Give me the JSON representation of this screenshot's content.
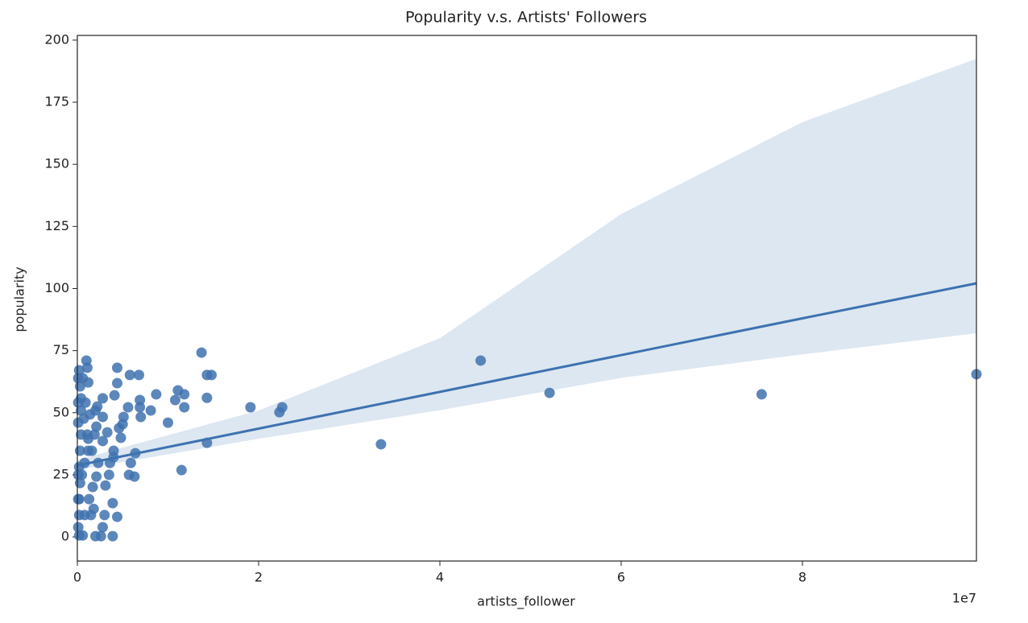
{
  "chart_data": {
    "type": "scatter",
    "title": "Popularity v.s. Artists' Followers",
    "x_label": "artists_follower",
    "y_label": "popularity",
    "x_offset_label": "1e7",
    "color": "#3f72af",
    "x": [
      99200000,
      75500000,
      52100000,
      44500000,
      33500000,
      22600000,
      22300000,
      19100000,
      14300000,
      14300000,
      14300000,
      14800000,
      13700000,
      11800000,
      11500000,
      11800000,
      11100000,
      10800000,
      10000000,
      8700000,
      8100000,
      7000000,
      6900000,
      6800000,
      6900000,
      6300000,
      6400000,
      5800000,
      5700000,
      5900000,
      5600000,
      5100000,
      5000000,
      4800000,
      4600000,
      4400000,
      4400000,
      4400000,
      4100000,
      4000000,
      4000000,
      3900000,
      3900000,
      3600000,
      3500000,
      3300000,
      3100000,
      3000000,
      2800000,
      2800000,
      2800000,
      2800000,
      2600000,
      2300000,
      2100000,
      2000000,
      2000000,
      2100000,
      1700000,
      1800000,
      1500000,
      1200000,
      1100000,
      1000000,
      1200000,
      800000,
      200000,
      300000,
      400000,
      400000,
      300000,
      200000,
      300000,
      200000,
      200000,
      200000,
      100000,
      600000,
      500000,
      700000,
      900000,
      1100000,
      1400000,
      1600000,
      600000,
      400000,
      100000,
      100000,
      100000,
      100000,
      100000,
      800000,
      1200000,
      1300000,
      1900000,
      2200000
    ],
    "y": [
      65.5,
      57.4,
      58,
      71,
      37.3,
      52.2,
      50.2,
      52.2,
      37.9,
      56,
      65.2,
      65.2,
      74.2,
      57.4,
      26.9,
      52.2,
      59,
      55.1,
      46,
      57.4,
      50.9,
      48.3,
      55.1,
      65.2,
      52.2,
      24.3,
      33.7,
      65.2,
      25,
      29.8,
      52.2,
      48.3,
      45.4,
      39.9,
      43.8,
      68.1,
      61.9,
      8.1,
      57,
      32.1,
      34.7,
      13.6,
      0.3,
      29.8,
      25,
      42.1,
      20.7,
      8.8,
      48.3,
      38.6,
      55.8,
      3.9,
      0.3,
      29.8,
      24.3,
      0.3,
      50.9,
      44.4,
      20.1,
      11.3,
      8.8,
      62.2,
      68.1,
      71,
      34.7,
      8.8,
      67.1,
      60.6,
      50.9,
      41.2,
      34.7,
      28.2,
      21.7,
      15.2,
      8.8,
      0.6,
      3.9,
      0.6,
      25,
      47.6,
      54.1,
      41.2,
      49.3,
      34.7,
      63.9,
      55.8,
      46,
      54.1,
      63.9,
      25,
      15.2,
      29.8,
      39.5,
      15.2,
      41.2,
      52.5
    ],
    "regression": {
      "color": "#3d72b0",
      "band_color": "#dde7f1",
      "x": [
        0,
        20000000,
        40000000,
        60000000,
        80000000,
        99200000
      ],
      "y": [
        28.8,
        43.6,
        58.4,
        73.2,
        88,
        102.1
      ],
      "ci_upper": [
        31,
        50.9,
        80,
        130,
        167,
        192.5
      ],
      "ci_lower": [
        27,
        39.5,
        51,
        64,
        73.5,
        82
      ]
    },
    "xlim": [
      0,
      99200000
    ],
    "ylim": [
      -9.7,
      201.9
    ],
    "xticks": [
      0,
      {
        "value": 20000000,
        "label": "2"
      },
      {
        "value": 40000000,
        "label": "4"
      },
      {
        "value": 60000000,
        "label": "6"
      },
      {
        "value": 80000000,
        "label": "8"
      }
    ],
    "yticks": [
      0,
      25,
      50,
      75,
      100,
      125,
      150,
      175,
      200
    ],
    "grid": false
  }
}
